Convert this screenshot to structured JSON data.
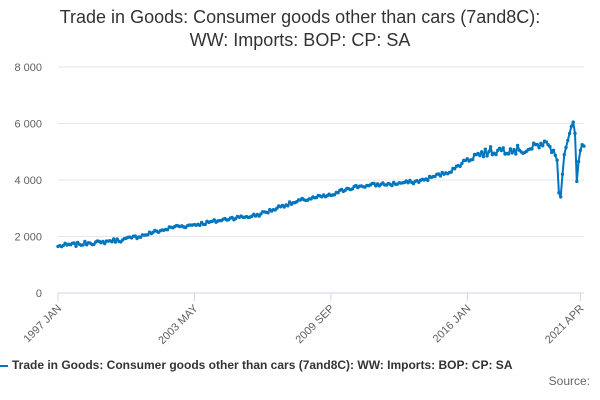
{
  "chart_data": {
    "type": "line",
    "title_line1": "Trade in Goods: Consumer goods other than cars (7and8C):",
    "title_line2": "WW: Imports: BOP: CP: SA",
    "xlabel": "",
    "ylabel": "",
    "x_tick_labels": [
      "1997 JAN",
      "2003 MAY",
      "2009 SEP",
      "2016 JAN",
      "2021 APR"
    ],
    "y_tick_labels": [
      "0",
      "2 000",
      "4 000",
      "6 000",
      "8 000"
    ],
    "y_ticks": [
      0,
      2000,
      4000,
      6000,
      8000
    ],
    "ylim": [
      0,
      8000
    ],
    "grid": true,
    "legend_position": "bottom",
    "series": [
      {
        "name": "Trade in Goods: Consumer goods other than cars (7and8C): WW: Imports: BOP: CP: SA",
        "color": "#0076be",
        "x_start": "1997-01",
        "x_end": "2021-06",
        "frequency": "monthly",
        "anchor_points": [
          [
            "1997-01",
            1650
          ],
          [
            "1997-06",
            1700
          ],
          [
            "1998-01",
            1720
          ],
          [
            "1998-06",
            1780
          ],
          [
            "1999-01",
            1780
          ],
          [
            "1999-06",
            1850
          ],
          [
            "2000-01",
            1880
          ],
          [
            "2000-06",
            1950
          ],
          [
            "2001-01",
            2050
          ],
          [
            "2001-06",
            2150
          ],
          [
            "2002-01",
            2250
          ],
          [
            "2002-06",
            2350
          ],
          [
            "2003-01",
            2380
          ],
          [
            "2003-05",
            2420
          ],
          [
            "2004-01",
            2500
          ],
          [
            "2004-06",
            2550
          ],
          [
            "2005-01",
            2650
          ],
          [
            "2005-06",
            2680
          ],
          [
            "2006-01",
            2720
          ],
          [
            "2006-06",
            2800
          ],
          [
            "2007-01",
            2950
          ],
          [
            "2007-06",
            3100
          ],
          [
            "2008-01",
            3200
          ],
          [
            "2008-06",
            3300
          ],
          [
            "2009-01",
            3380
          ],
          [
            "2009-09",
            3450
          ],
          [
            "2010-01",
            3550
          ],
          [
            "2010-06",
            3700
          ],
          [
            "2011-01",
            3780
          ],
          [
            "2011-06",
            3800
          ],
          [
            "2012-01",
            3850
          ],
          [
            "2012-06",
            3850
          ],
          [
            "2013-01",
            3900
          ],
          [
            "2013-06",
            3920
          ],
          [
            "2014-01",
            4000
          ],
          [
            "2014-06",
            4120
          ],
          [
            "2015-01",
            4250
          ],
          [
            "2015-06",
            4400
          ],
          [
            "2016-01",
            4750
          ],
          [
            "2016-06",
            4900
          ],
          [
            "2017-01",
            5000
          ],
          [
            "2017-06",
            5050
          ],
          [
            "2018-01",
            5100
          ],
          [
            "2018-06",
            5050
          ],
          [
            "2019-01",
            5100
          ],
          [
            "2019-06",
            5300
          ],
          [
            "2019-10",
            5250
          ],
          [
            "2020-01",
            5050
          ],
          [
            "2020-03",
            4700
          ],
          [
            "2020-04",
            3550
          ],
          [
            "2020-05",
            3400
          ],
          [
            "2020-06",
            4200
          ],
          [
            "2020-07",
            4900
          ],
          [
            "2020-09",
            5400
          ],
          [
            "2020-11",
            5900
          ],
          [
            "2020-12",
            6050
          ],
          [
            "2021-01",
            5650
          ],
          [
            "2021-02",
            3950
          ],
          [
            "2021-03",
            4650
          ],
          [
            "2021-04",
            5050
          ],
          [
            "2021-05",
            5250
          ],
          [
            "2021-06",
            5200
          ]
        ]
      }
    ],
    "source_label": "Source:"
  }
}
